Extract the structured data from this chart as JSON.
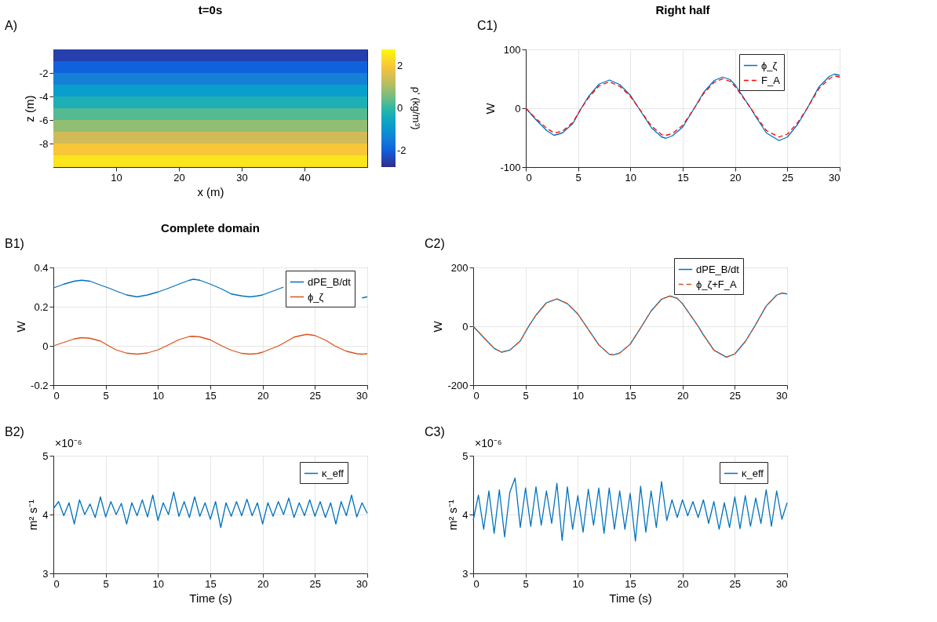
{
  "chart_data": [
    {
      "type": "heatmap",
      "title": "t=0s",
      "xlabel": "x (m)",
      "ylabel": "z (m)",
      "clabel": "ρ' (kg/m³)",
      "annotations": [
        "A)"
      ],
      "y": [
        -0.5,
        -1.5,
        -2.5,
        -3.5,
        -4.5,
        -5.5,
        -6.5,
        -7.5,
        -8.5,
        -9.5
      ],
      "cells": [
        [
          -2.5
        ],
        [
          -2.0
        ],
        [
          -1.4
        ],
        [
          -0.8
        ],
        [
          -0.3
        ],
        [
          0.3
        ],
        [
          0.8
        ],
        [
          1.4
        ],
        [
          2.0
        ],
        [
          2.5
        ]
      ],
      "colors": [
        "#352a87",
        "#0f5cdd",
        "#1481d6",
        "#06a4ca",
        "#2eb7a4",
        "#87bf77",
        "#d1bb59",
        "#fec832",
        "#f9fb0e"
      ],
      "clim": [
        -2.8,
        2.8
      ],
      "cticks": [
        -2,
        0,
        2
      ],
      "xlim": [
        0,
        50
      ],
      "xticks": [
        10,
        20,
        30,
        40
      ],
      "ylim": [
        -10,
        0
      ],
      "yticks": [
        -2,
        -4,
        -6,
        -8
      ]
    },
    {
      "type": "line",
      "title": "Right half",
      "ylabel": "W",
      "annotations": [
        "C1)"
      ],
      "x": [
        0,
        1,
        2,
        2.7,
        3.5,
        4.5,
        5.3,
        6,
        7,
        8,
        9,
        10,
        10.8,
        12,
        13,
        13.4,
        14,
        15,
        16.1,
        17,
        18,
        18.8,
        19.5,
        20,
        21.5,
        22,
        23,
        24.2,
        25,
        26,
        26.9,
        28,
        29,
        29.5,
        30
      ],
      "series": [
        {
          "name": "ϕ_ζ",
          "color": "#0072bd",
          "line_style": "solid",
          "values": [
            0,
            -20,
            -38,
            -46,
            -42,
            -26,
            0,
            20,
            41,
            48,
            40,
            22,
            0,
            -33,
            -49,
            -51,
            -47,
            -32,
            0,
            27,
            47,
            53,
            49,
            40,
            0,
            -15,
            -42,
            -55,
            -49,
            -27,
            0,
            36,
            54,
            58,
            56
          ]
        },
        {
          "name": "F_A",
          "color": "#ff0000",
          "line_style": "dashed",
          "values": [
            0,
            -18,
            -34,
            -42,
            -39,
            -24,
            0,
            18,
            38,
            45,
            37,
            20,
            0,
            -30,
            -45,
            -46,
            -43,
            -29,
            0,
            25,
            44,
            50,
            46,
            37,
            0,
            -13,
            -38,
            -49,
            -44,
            -24,
            0,
            33,
            50,
            55,
            53
          ]
        }
      ],
      "xlim": [
        0,
        30
      ],
      "xticks": [
        0,
        5,
        10,
        15,
        20,
        25,
        30
      ],
      "ylim": [
        -100,
        100
      ],
      "yticks": [
        -100,
        0,
        100
      ],
      "grid": true,
      "legend": "top right"
    },
    {
      "type": "line",
      "title": "Complete domain",
      "ylabel": "W",
      "annotations": [
        "B1)"
      ],
      "x": [
        0,
        1,
        2,
        2.7,
        3.5,
        4.5,
        5.3,
        6,
        7,
        8,
        9,
        10,
        10.8,
        12,
        13,
        13.4,
        14,
        15,
        16.1,
        17,
        18,
        18.8,
        19.5,
        20,
        21.5,
        22,
        23,
        24.2,
        25,
        26,
        26.9,
        28,
        29,
        29.5,
        30
      ],
      "series": [
        {
          "name": "dPE_B/dt",
          "color": "#0072bd",
          "line_style": "solid",
          "values": [
            0.295,
            0.315,
            0.33,
            0.335,
            0.33,
            0.31,
            0.295,
            0.28,
            0.26,
            0.25,
            0.26,
            0.275,
            0.29,
            0.315,
            0.335,
            0.34,
            0.335,
            0.315,
            0.29,
            0.265,
            0.255,
            0.25,
            0.255,
            0.26,
            0.29,
            0.3,
            null,
            null,
            null,
            null,
            null,
            null,
            null,
            0.245,
            0.25
          ]
        },
        {
          "name": "ϕ_ζ",
          "color": "#d95319",
          "line_style": "solid",
          "values": [
            0,
            0.018,
            0.036,
            0.042,
            0.039,
            0.025,
            0,
            -0.02,
            -0.037,
            -0.042,
            -0.036,
            -0.02,
            0,
            0.032,
            0.048,
            0.049,
            0.046,
            0.031,
            0,
            -0.022,
            -0.038,
            -0.042,
            -0.039,
            -0.032,
            0,
            0.014,
            0.045,
            0.059,
            0.053,
            0.03,
            0,
            -0.027,
            -0.04,
            -0.042,
            -0.04
          ]
        }
      ],
      "xlim": [
        0,
        30
      ],
      "xticks": [
        0,
        5,
        10,
        15,
        20,
        25,
        30
      ],
      "ylim": [
        -0.2,
        0.4
      ],
      "yticks": [
        -0.2,
        0,
        0.2,
        0.4
      ],
      "grid": true,
      "legend": "top right"
    },
    {
      "type": "line",
      "ylabel": "W",
      "annotations": [
        "C2)"
      ],
      "x": [
        0,
        1,
        2,
        2.7,
        3.5,
        4.5,
        5.3,
        6,
        7,
        8,
        9,
        10,
        10.8,
        12,
        13,
        13.4,
        14,
        15,
        16.1,
        17,
        18,
        18.8,
        19.5,
        20,
        21.5,
        22,
        23,
        24.2,
        25,
        26,
        26.9,
        28,
        29,
        29.5,
        30
      ],
      "series": [
        {
          "name": "dPE_B/dt",
          "color": "#0072bd",
          "line_style": "solid",
          "values": [
            0,
            -38,
            -75,
            -88,
            -81,
            -50,
            0,
            38,
            80,
            93,
            77,
            42,
            0,
            -63,
            -95,
            -97,
            -91,
            -61,
            0,
            52,
            92,
            103,
            95,
            77,
            0,
            -29,
            -81,
            -105,
            -94,
            -52,
            0,
            69,
            106,
            113,
            110
          ]
        },
        {
          "name": "ϕ_ζ+F_A",
          "color": "#d95319",
          "line_style": "dashed",
          "values": [
            0,
            -38,
            -75,
            -88,
            -81,
            -50,
            0,
            38,
            80,
            93,
            77,
            42,
            0,
            -63,
            -95,
            -97,
            -91,
            -61,
            0,
            52,
            92,
            103,
            95,
            77,
            0,
            -29,
            -81,
            -105,
            -94,
            -52,
            0,
            69,
            106,
            113,
            110
          ]
        }
      ],
      "xlim": [
        0,
        30
      ],
      "xticks": [
        0,
        5,
        10,
        15,
        20,
        25,
        30
      ],
      "ylim": [
        -200,
        200
      ],
      "yticks": [
        -200,
        0,
        200
      ],
      "grid": true,
      "legend": "top right"
    },
    {
      "type": "line",
      "xlabel": "Time (s)",
      "ylabel": "m² s⁻¹",
      "annotations": [
        "B2)",
        "×10⁻⁶"
      ],
      "x": [
        0,
        0.5,
        1,
        1.5,
        2,
        2.5,
        3,
        3.5,
        4,
        4.5,
        5,
        5.5,
        6,
        6.5,
        7,
        7.5,
        8,
        8.5,
        9,
        9.5,
        10,
        10.5,
        11,
        11.5,
        12,
        12.5,
        13,
        13.5,
        14,
        14.5,
        15,
        15.5,
        16,
        16.5,
        17,
        17.5,
        18,
        18.5,
        19,
        19.5,
        20,
        20.5,
        21,
        21.5,
        22,
        22.5,
        23,
        23.5,
        24,
        24.5,
        25,
        25.5,
        26,
        26.5,
        27,
        27.5,
        28,
        28.5,
        29,
        29.5,
        30
      ],
      "series": [
        {
          "name": "κ_eff",
          "color": "#0072bd",
          "line_style": "solid",
          "values": [
            4.1,
            4.22,
            3.98,
            4.2,
            3.84,
            4.25,
            4.0,
            4.18,
            3.95,
            4.3,
            3.96,
            4.22,
            4.0,
            4.19,
            3.84,
            4.2,
            3.98,
            4.25,
            3.96,
            4.33,
            3.9,
            4.2,
            4.0,
            4.38,
            3.97,
            4.22,
            3.95,
            4.3,
            3.97,
            4.2,
            3.92,
            4.22,
            3.78,
            4.2,
            3.97,
            4.22,
            3.98,
            4.26,
            3.98,
            4.2,
            3.84,
            4.2,
            3.97,
            4.22,
            4.0,
            4.28,
            3.95,
            4.2,
            3.98,
            4.25,
            3.97,
            4.22,
            3.95,
            4.2,
            3.84,
            4.22,
            3.98,
            4.33,
            3.96,
            4.2,
            4.02
          ]
        }
      ],
      "xlim": [
        0,
        30
      ],
      "xticks": [
        0,
        5,
        10,
        15,
        20,
        25,
        30
      ],
      "ylim": [
        3,
        5
      ],
      "yticks": [
        3,
        4,
        5
      ],
      "grid": true,
      "legend": "top right"
    },
    {
      "type": "line",
      "xlabel": "Time (s)",
      "ylabel": "m² s⁻¹",
      "annotations": [
        "C3)",
        "×10⁻⁶"
      ],
      "x": [
        0,
        0.5,
        1,
        1.5,
        2,
        2.5,
        3,
        3.5,
        4,
        4.5,
        5,
        5.5,
        6,
        6.5,
        7,
        7.5,
        8,
        8.5,
        9,
        9.5,
        10,
        10.5,
        11,
        11.5,
        12,
        12.5,
        13,
        13.5,
        14,
        14.5,
        15,
        15.5,
        16,
        16.5,
        17,
        17.5,
        18,
        18.5,
        19,
        19.5,
        20,
        20.5,
        21,
        21.5,
        22,
        22.5,
        23,
        23.5,
        24,
        24.5,
        25,
        25.5,
        26,
        26.5,
        27,
        27.5,
        28,
        28.5,
        29,
        29.5,
        30
      ],
      "series": [
        {
          "name": "κ_eff",
          "color": "#0072bd",
          "line_style": "solid",
          "values": [
            3.9,
            4.33,
            3.75,
            4.4,
            3.68,
            4.42,
            3.62,
            4.38,
            4.62,
            3.78,
            4.45,
            3.8,
            4.47,
            3.82,
            4.4,
            3.85,
            4.53,
            3.56,
            4.47,
            3.75,
            4.32,
            3.7,
            4.43,
            3.82,
            4.45,
            3.68,
            4.45,
            3.75,
            4.4,
            3.75,
            4.36,
            3.55,
            4.48,
            3.7,
            4.4,
            3.78,
            4.56,
            3.9,
            4.25,
            3.95,
            4.25,
            3.98,
            4.22,
            3.95,
            4.25,
            3.85,
            4.22,
            3.75,
            4.2,
            3.78,
            4.3,
            3.76,
            4.32,
            3.8,
            4.28,
            3.85,
            4.42,
            3.8,
            4.4,
            3.92,
            4.2
          ]
        }
      ],
      "xlim": [
        0,
        30
      ],
      "xticks": [
        0,
        5,
        10,
        15,
        20,
        25,
        30
      ],
      "ylim": [
        3,
        5
      ],
      "yticks": [
        3,
        4,
        5
      ],
      "grid": true,
      "legend": "top right"
    }
  ]
}
